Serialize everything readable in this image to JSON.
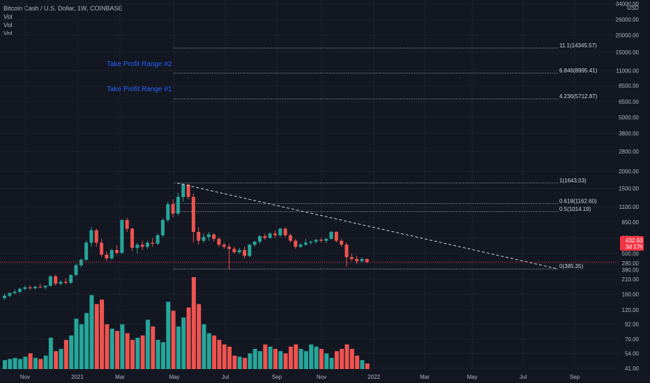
{
  "legend": {
    "title": "Bitcoin Cash / U.S. Dollar, 1W, COINBASE",
    "lines": [
      "Vol",
      "Vol",
      "Vol"
    ]
  },
  "annotations": {
    "take_profit_1": "Take Profit Range #1",
    "take_profit_2": "Take Profit Range #2"
  },
  "price_tag": {
    "value": "432.63",
    "countdown": "3d 17h",
    "color": "#f23645"
  },
  "colors": {
    "up": "#26a69a",
    "down": "#ef5350",
    "background": "#131722",
    "grid": "#1e222d",
    "annotation": "#2962ff"
  },
  "chart_data": {
    "type": "candlestick",
    "symbol": "Bitcoin Cash / U.S. Dollar",
    "interval": "1W",
    "exchange": "COINBASE",
    "y_scale": "log",
    "y_axis_unit": "USD",
    "y_ticks": [
      41,
      54,
      70,
      92,
      120,
      160,
      210,
      280,
      380,
      500,
      650,
      850,
      1100,
      1500,
      2000,
      2800,
      3800,
      5000,
      6500,
      8500,
      11000,
      15000,
      20000,
      26000,
      34000
    ],
    "y_tick_labels": [
      "41.00",
      "54.00",
      "70.00",
      "92.00",
      "120.00",
      "160.00",
      "210.00",
      "280.00",
      "380.00",
      "500.00",
      "650.00",
      "850.00",
      "1100.00",
      "1500.00",
      "2000.00",
      "2800.00",
      "3800.00",
      "5000.00",
      "6500.00",
      "8500.00",
      "11000.00",
      "15000.00",
      "20000.00",
      "26000.00",
      "34000.00"
    ],
    "x_labels": [
      "Nov",
      "2021",
      "Mar",
      "May",
      "Jul",
      "Sep",
      "Nov",
      "2022",
      "Mar",
      "May",
      "Jul",
      "Sep"
    ],
    "fib_levels": [
      {
        "label": "11.1(14345.57)",
        "value": 14345.57
      },
      {
        "label": "6.846(8995.41)",
        "value": 8995.41
      },
      {
        "label": "4.236(5712.87)",
        "value": 5712.87
      },
      {
        "label": "1(1643.03)",
        "value": 1643.03
      },
      {
        "label": "0.618(1162.60)",
        "value": 1162.6
      },
      {
        "label": "0.5(1014.19)",
        "value": 1014.19
      },
      {
        "label": "0(385.35)",
        "value": 385.35
      }
    ],
    "trendline": {
      "from": 1643.03,
      "to": 385.35,
      "style": "dashed"
    },
    "current_price": 432.63,
    "candles": [
      [
        235,
        252,
        228,
        245
      ],
      [
        245,
        260,
        238,
        256
      ],
      [
        256,
        272,
        250,
        262
      ],
      [
        262,
        280,
        255,
        275
      ],
      [
        275,
        290,
        268,
        282
      ],
      [
        282,
        292,
        270,
        278
      ],
      [
        278,
        290,
        272,
        285
      ],
      [
        285,
        300,
        278,
        282
      ],
      [
        282,
        292,
        272,
        290
      ],
      [
        290,
        345,
        285,
        340
      ],
      [
        340,
        350,
        290,
        300
      ],
      [
        300,
        318,
        292,
        310
      ],
      [
        310,
        330,
        296,
        305
      ],
      [
        305,
        352,
        298,
        348
      ],
      [
        348,
        420,
        340,
        410
      ],
      [
        410,
        460,
        395,
        450
      ],
      [
        450,
        620,
        440,
        600
      ],
      [
        600,
        780,
        560,
        740
      ],
      [
        740,
        760,
        560,
        600
      ],
      [
        600,
        640,
        470,
        490
      ],
      [
        490,
        520,
        440,
        460
      ],
      [
        460,
        540,
        450,
        530
      ],
      [
        530,
        575,
        490,
        505
      ],
      [
        505,
        890,
        495,
        880
      ],
      [
        880,
        910,
        720,
        760
      ],
      [
        760,
        770,
        520,
        550
      ],
      [
        550,
        600,
        500,
        580
      ],
      [
        580,
        620,
        530,
        560
      ],
      [
        560,
        620,
        540,
        600
      ],
      [
        600,
        650,
        560,
        590
      ],
      [
        590,
        700,
        575,
        680
      ],
      [
        680,
        900,
        660,
        880
      ],
      [
        880,
        1200,
        850,
        1150
      ],
      [
        1150,
        1250,
        920,
        980
      ],
      [
        980,
        1400,
        950,
        1300
      ],
      [
        1300,
        1643,
        1200,
        1600
      ],
      [
        1600,
        1620,
        1250,
        1300
      ],
      [
        1300,
        1380,
        600,
        720
      ],
      [
        720,
        780,
        580,
        620
      ],
      [
        620,
        700,
        600,
        660
      ],
      [
        660,
        720,
        620,
        690
      ],
      [
        690,
        700,
        610,
        640
      ],
      [
        640,
        660,
        560,
        580
      ],
      [
        580,
        600,
        540,
        560
      ],
      [
        560,
        590,
        385,
        540
      ],
      [
        540,
        560,
        500,
        510
      ],
      [
        510,
        550,
        495,
        530
      ],
      [
        530,
        560,
        460,
        480
      ],
      [
        480,
        590,
        470,
        580
      ],
      [
        580,
        620,
        560,
        610
      ],
      [
        610,
        680,
        590,
        670
      ],
      [
        670,
        700,
        630,
        650
      ],
      [
        650,
        720,
        640,
        700
      ],
      [
        700,
        740,
        650,
        680
      ],
      [
        680,
        770,
        660,
        760
      ],
      [
        760,
        780,
        660,
        680
      ],
      [
        680,
        700,
        600,
        620
      ],
      [
        620,
        640,
        540,
        560
      ],
      [
        560,
        600,
        550,
        580
      ],
      [
        580,
        640,
        570,
        600
      ],
      [
        600,
        620,
        580,
        610
      ],
      [
        610,
        640,
        590,
        630
      ],
      [
        630,
        650,
        600,
        620
      ],
      [
        620,
        650,
        595,
        640
      ],
      [
        640,
        730,
        630,
        720
      ],
      [
        720,
        730,
        600,
        620
      ],
      [
        620,
        640,
        560,
        580
      ],
      [
        580,
        600,
        400,
        470
      ],
      [
        470,
        500,
        440,
        455
      ],
      [
        455,
        480,
        420,
        440
      ],
      [
        440,
        470,
        430,
        455
      ],
      [
        455,
        460,
        425,
        432
      ]
    ],
    "volumes": [
      8,
      9,
      10,
      9,
      11,
      14,
      10,
      9,
      12,
      28,
      16,
      18,
      26,
      30,
      45,
      40,
      50,
      66,
      58,
      62,
      40,
      36,
      34,
      40,
      32,
      26,
      28,
      30,
      44,
      38,
      26,
      24,
      60,
      52,
      38,
      46,
      55,
      82,
      58,
      40,
      32,
      30,
      26,
      22,
      20,
      12,
      11,
      10,
      14,
      18,
      16,
      22,
      20,
      18,
      16,
      14,
      20,
      22,
      18,
      16,
      22,
      20,
      18,
      14,
      10,
      16,
      18,
      22,
      18,
      12,
      8,
      5
    ]
  }
}
